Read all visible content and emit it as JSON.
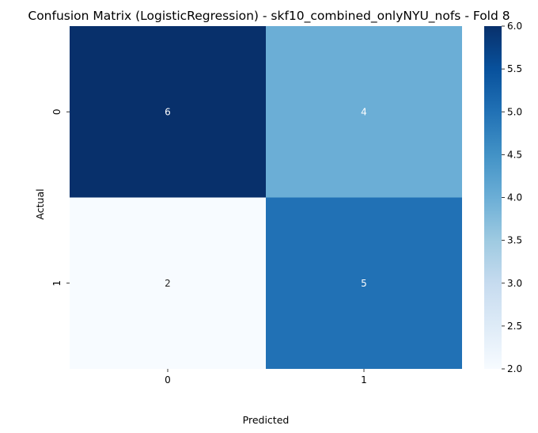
{
  "chart_data": {
    "type": "heatmap",
    "title": "Confusion Matrix (LogisticRegression) - skf10_combined_onlyNYU_nofs - Fold 8",
    "xlabel": "Predicted",
    "ylabel": "Actual",
    "x_categories": [
      "0",
      "1"
    ],
    "y_categories": [
      "0",
      "1"
    ],
    "values": [
      [
        6,
        4
      ],
      [
        2,
        5
      ]
    ],
    "colormap": "Blues",
    "colorbar": {
      "min": 2.0,
      "max": 6.0,
      "ticks": [
        "2.0",
        "2.5",
        "3.0",
        "3.5",
        "4.0",
        "4.5",
        "5.0",
        "5.5",
        "6.0"
      ]
    },
    "cell_colors": [
      [
        "#08306b",
        "#6baed6"
      ],
      [
        "#f7fbff",
        "#2171b5"
      ]
    ],
    "annotation_colors": [
      [
        "#ffffff",
        "#ffffff"
      ],
      [
        "#262626",
        "#ffffff"
      ]
    ]
  }
}
